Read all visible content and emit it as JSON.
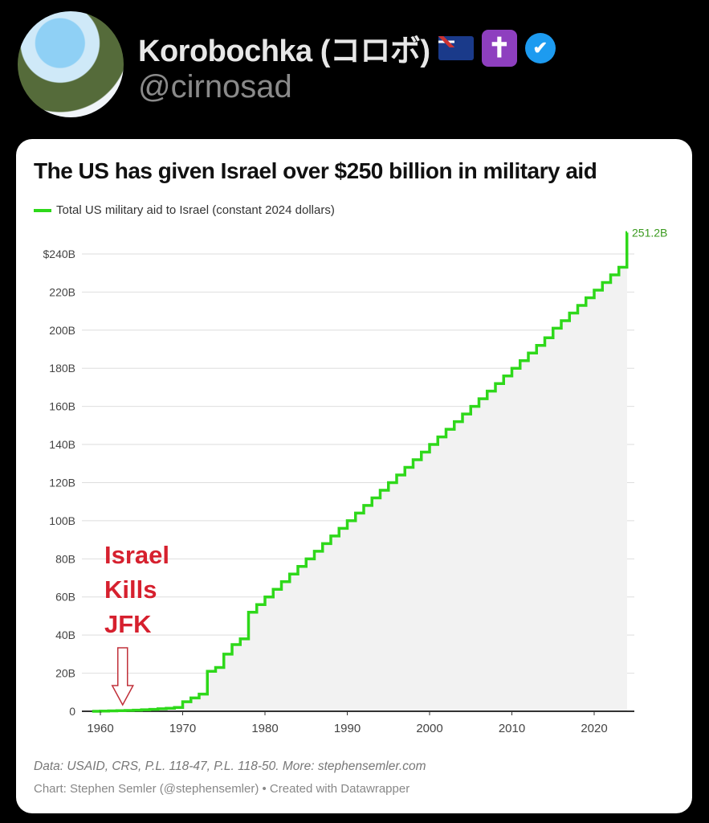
{
  "user": {
    "display_name": "Korobochka (コロボ)",
    "handle": "@cirnosad",
    "icons": [
      "australia-flag-icon",
      "latin-cross-icon",
      "verified-badge-icon"
    ]
  },
  "chart_data": {
    "type": "line",
    "step": true,
    "title": "The US has given Israel over $250 billion in military aid",
    "legend": [
      "Total US military aid to Israel (constant 2024 dollars)"
    ],
    "legend_placement": "top-left",
    "color": "#2ed81a",
    "x": [
      1959,
      1960,
      1961,
      1962,
      1963,
      1964,
      1965,
      1966,
      1967,
      1968,
      1969,
      1970,
      1971,
      1972,
      1973,
      1974,
      1975,
      1976,
      1977,
      1978,
      1979,
      1980,
      1981,
      1982,
      1983,
      1984,
      1985,
      1986,
      1987,
      1988,
      1989,
      1990,
      1991,
      1992,
      1993,
      1994,
      1995,
      1996,
      1997,
      1998,
      1999,
      2000,
      2001,
      2002,
      2003,
      2004,
      2005,
      2006,
      2007,
      2008,
      2009,
      2010,
      2011,
      2012,
      2013,
      2014,
      2015,
      2016,
      2017,
      2018,
      2019,
      2020,
      2021,
      2022,
      2023
    ],
    "values": [
      0,
      0.1,
      0.2,
      0.3,
      0.4,
      0.6,
      0.8,
      1.0,
      1.3,
      1.6,
      2.0,
      5,
      7,
      9,
      21,
      23,
      30,
      35,
      38,
      52,
      56,
      60,
      64,
      68,
      72,
      76,
      80,
      84,
      88,
      92,
      96,
      100,
      104,
      108,
      112,
      116,
      120,
      124,
      128,
      132,
      136,
      140,
      144,
      148,
      152,
      156,
      160,
      164,
      168,
      172,
      176,
      180,
      184,
      188,
      192,
      196,
      201,
      205,
      209,
      213,
      217,
      221,
      225,
      229,
      233
    ],
    "final_label": "251.2B",
    "final_value": 251.2,
    "xlim": [
      1959,
      2024
    ],
    "ylim": [
      0,
      250
    ],
    "yticks": [
      0,
      20,
      40,
      60,
      80,
      100,
      120,
      140,
      160,
      180,
      200,
      220,
      240
    ],
    "ytick_labels": [
      "0",
      "20B",
      "40B",
      "60B",
      "80B",
      "100B",
      "120B",
      "140B",
      "160B",
      "180B",
      "200B",
      "220B",
      "$240B"
    ],
    "xticks": [
      1960,
      1970,
      1980,
      1990,
      2000,
      2010,
      2020
    ],
    "xtick_labels": [
      "1960",
      "1970",
      "1980",
      "1990",
      "2000",
      "2010",
      "2020"
    ],
    "grid": true,
    "annotation": {
      "lines": [
        "Israel",
        "Kills",
        "JFK"
      ],
      "year": 1963
    }
  },
  "footer": {
    "source": "Data: USAID, CRS, P.L. 118-47, P.L. 118-50. More: stephensemler.com",
    "credit": "Chart: Stephen Semler (@stephensemler) • Created with Datawrapper"
  }
}
